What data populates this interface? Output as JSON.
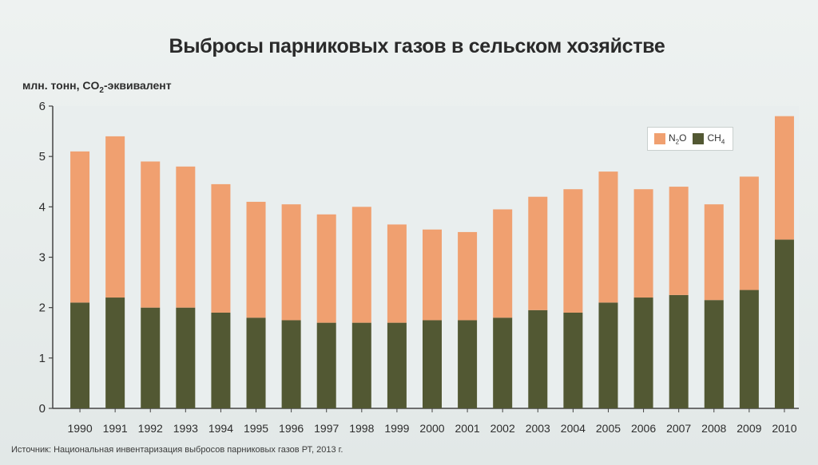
{
  "title": "Выбросы парниковых газов в сельском хозяйстве",
  "y_unit": {
    "prefix": "млн. тонн, CO",
    "subscript": "2",
    "suffix": "-эквивалент"
  },
  "source": "Источник: Национальная инвентаризация выбросов парниковых газов РТ, 2013 г.",
  "colors": {
    "n2o": "#f0a070",
    "ch4": "#525833",
    "plot_background": "#e9eeee",
    "axis": "#444444"
  },
  "legend": {
    "n2o_prefix": "N",
    "n2o_subscript": "2",
    "n2o_suffix": "O",
    "ch4_prefix": "CH",
    "ch4_subscript": "4"
  },
  "chart_data": {
    "type": "bar",
    "stacked": true,
    "categories": [
      "1990",
      "1991",
      "1992",
      "1993",
      "1994",
      "1995",
      "1996",
      "1997",
      "1998",
      "1999",
      "2000",
      "2001",
      "2002",
      "2003",
      "2004",
      "2005",
      "2006",
      "2007",
      "2008",
      "2009",
      "2010"
    ],
    "series": [
      {
        "name": "CH4",
        "values": [
          2.1,
          2.2,
          2.0,
          2.0,
          1.9,
          1.8,
          1.75,
          1.7,
          1.7,
          1.7,
          1.75,
          1.75,
          1.8,
          1.95,
          1.9,
          2.1,
          2.2,
          2.25,
          2.15,
          2.35,
          3.35
        ]
      },
      {
        "name": "N2O",
        "values": [
          3.0,
          3.2,
          2.9,
          2.8,
          2.55,
          2.3,
          2.3,
          2.15,
          2.3,
          1.95,
          1.8,
          1.75,
          2.15,
          2.25,
          2.45,
          2.6,
          2.15,
          2.15,
          1.9,
          2.25,
          2.45
        ]
      }
    ],
    "yticks": [
      "0",
      "1",
      "2",
      "3",
      "4",
      "5",
      "6"
    ],
    "ylim": [
      0,
      6
    ],
    "grid": false,
    "legend_position": "top-right"
  }
}
